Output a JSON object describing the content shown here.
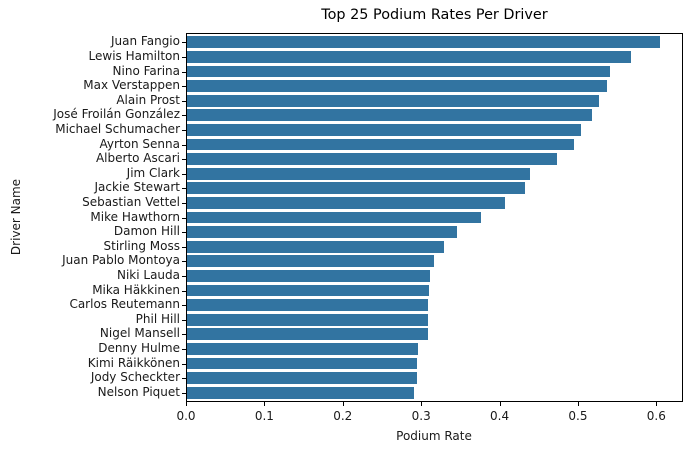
{
  "chart_data": {
    "type": "bar",
    "orientation": "horizontal",
    "title": "Top 25 Podium Rates Per Driver",
    "xlabel": "Podium Rate",
    "ylabel": "Driver Name",
    "xlim": [
      0,
      0.634
    ],
    "xticks": [
      "0.0",
      "0.1",
      "0.2",
      "0.3",
      "0.4",
      "0.5",
      "0.6"
    ],
    "grid": false,
    "legend": null,
    "color": "#3274a1",
    "categories": [
      "Juan Fangio",
      "Lewis Hamilton",
      "Nino Farina",
      "Max Verstappen",
      "Alain Prost",
      "José Froilán González",
      "Michael Schumacher",
      "Ayrton Senna",
      "Alberto Ascari",
      "Jim Clark",
      "Jackie Stewart",
      "Sebastian Vettel",
      "Mike Hawthorn",
      "Damon Hill",
      "Stirling Moss",
      "Juan Pablo Montoya",
      "Niki Lauda",
      "Mika Häkkinen",
      "Carlos Reutemann",
      "Phil Hill",
      "Nigel Mansell",
      "Denny Hulme",
      "Kimi Räikkönen",
      "Jody Scheckter",
      "Nelson Piquet"
    ],
    "values": [
      0.603,
      0.567,
      0.54,
      0.536,
      0.525,
      0.517,
      0.503,
      0.494,
      0.472,
      0.438,
      0.431,
      0.406,
      0.375,
      0.345,
      0.328,
      0.315,
      0.31,
      0.309,
      0.307,
      0.307,
      0.307,
      0.295,
      0.293,
      0.293,
      0.29
    ]
  }
}
